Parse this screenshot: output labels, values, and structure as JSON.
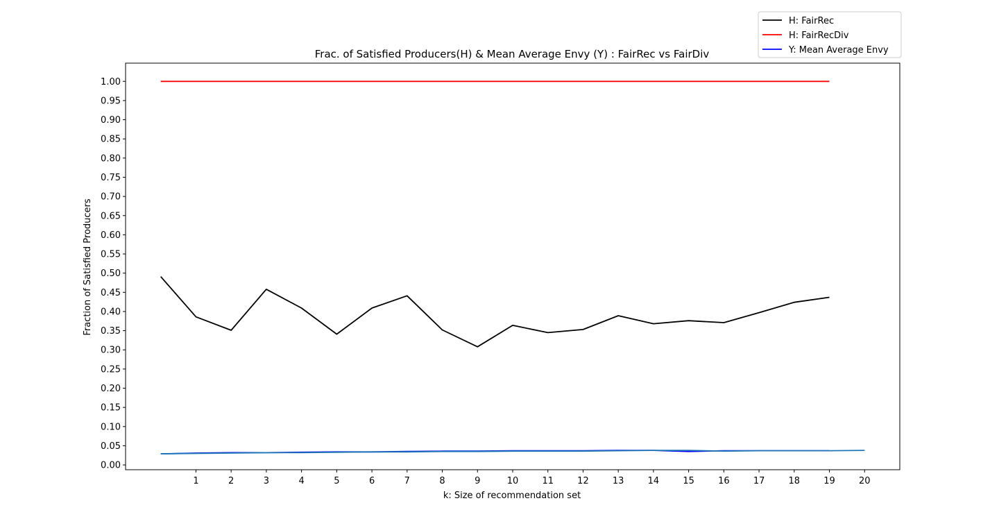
{
  "chart_data": {
    "type": "line",
    "title": "Frac. of Satisfied Producers(H) & Mean Average Envy (Y) : FairRec vs FairDiv",
    "xlabel": "k: Size of recommendation set",
    "ylabel": "Fraction of Satisfied Producers",
    "xlim": [
      -1,
      21
    ],
    "ylim": [
      -0.0125,
      1.0475
    ],
    "x_ticks": [
      1,
      2,
      3,
      4,
      5,
      6,
      7,
      8,
      9,
      10,
      11,
      12,
      13,
      14,
      15,
      16,
      17,
      18,
      19,
      20
    ],
    "y_ticks": [
      0.0,
      0.05,
      0.1,
      0.15,
      0.2,
      0.25,
      0.3,
      0.35,
      0.4,
      0.45,
      0.5,
      0.55,
      0.6,
      0.65,
      0.7,
      0.75,
      0.8,
      0.85,
      0.9,
      0.95,
      1.0
    ],
    "y_tick_labels": [
      "0.00",
      "0.05",
      "0.10",
      "0.15",
      "0.20",
      "0.25",
      "0.30",
      "0.35",
      "0.40",
      "0.45",
      "0.50",
      "0.55",
      "0.60",
      "0.65",
      "0.70",
      "0.75",
      "0.80",
      "0.85",
      "0.90",
      "0.95",
      "1.00"
    ],
    "grid": false,
    "legend_position": "top-right (outside axes)",
    "series": [
      {
        "name": "H: FairRec",
        "color": "#000000",
        "in_legend": true,
        "x": [
          0,
          1,
          2,
          3,
          4,
          5,
          6,
          7,
          8,
          9,
          10,
          11,
          12,
          13,
          14,
          15,
          16,
          17,
          18,
          19
        ],
        "values": [
          0.491,
          0.386,
          0.351,
          0.458,
          0.409,
          0.341,
          0.409,
          0.441,
          0.352,
          0.308,
          0.364,
          0.345,
          0.353,
          0.389,
          0.368,
          0.376,
          0.371,
          0.397,
          0.424,
          0.437
        ]
      },
      {
        "name": "H: FairRecDiv",
        "color": "#ff0000",
        "in_legend": true,
        "x": [
          0,
          1,
          2,
          3,
          4,
          5,
          6,
          7,
          8,
          9,
          10,
          11,
          12,
          13,
          14,
          15,
          16,
          17,
          18,
          19
        ],
        "values": [
          1.0,
          1.0,
          1.0,
          1.0,
          1.0,
          1.0,
          1.0,
          1.0,
          1.0,
          1.0,
          1.0,
          1.0,
          1.0,
          1.0,
          1.0,
          1.0,
          1.0,
          1.0,
          1.0,
          1.0
        ]
      },
      {
        "name": "Y: Mean Average Envy",
        "color": "#0000ff",
        "in_legend": true,
        "x": [
          0,
          1,
          2,
          3,
          4,
          5,
          6,
          7,
          8,
          9,
          10,
          11,
          12,
          13,
          14,
          15,
          16,
          17,
          18,
          19
        ],
        "values": [
          0.029,
          0.031,
          0.032,
          0.032,
          0.033,
          0.034,
          0.034,
          0.035,
          0.036,
          0.036,
          0.037,
          0.037,
          0.037,
          0.038,
          0.038,
          0.035,
          0.037,
          0.037,
          0.037,
          0.037
        ]
      },
      {
        "name": "",
        "color": "#1f77b4",
        "in_legend": false,
        "x": [
          0,
          1,
          2,
          3,
          4,
          5,
          6,
          7,
          8,
          9,
          10,
          11,
          12,
          13,
          14,
          15,
          16,
          17,
          18,
          19,
          20
        ],
        "values": [
          0.029,
          0.03,
          0.031,
          0.032,
          0.032,
          0.033,
          0.034,
          0.034,
          0.035,
          0.035,
          0.036,
          0.036,
          0.036,
          0.037,
          0.038,
          0.038,
          0.036,
          0.037,
          0.037,
          0.037,
          0.038
        ]
      }
    ]
  }
}
